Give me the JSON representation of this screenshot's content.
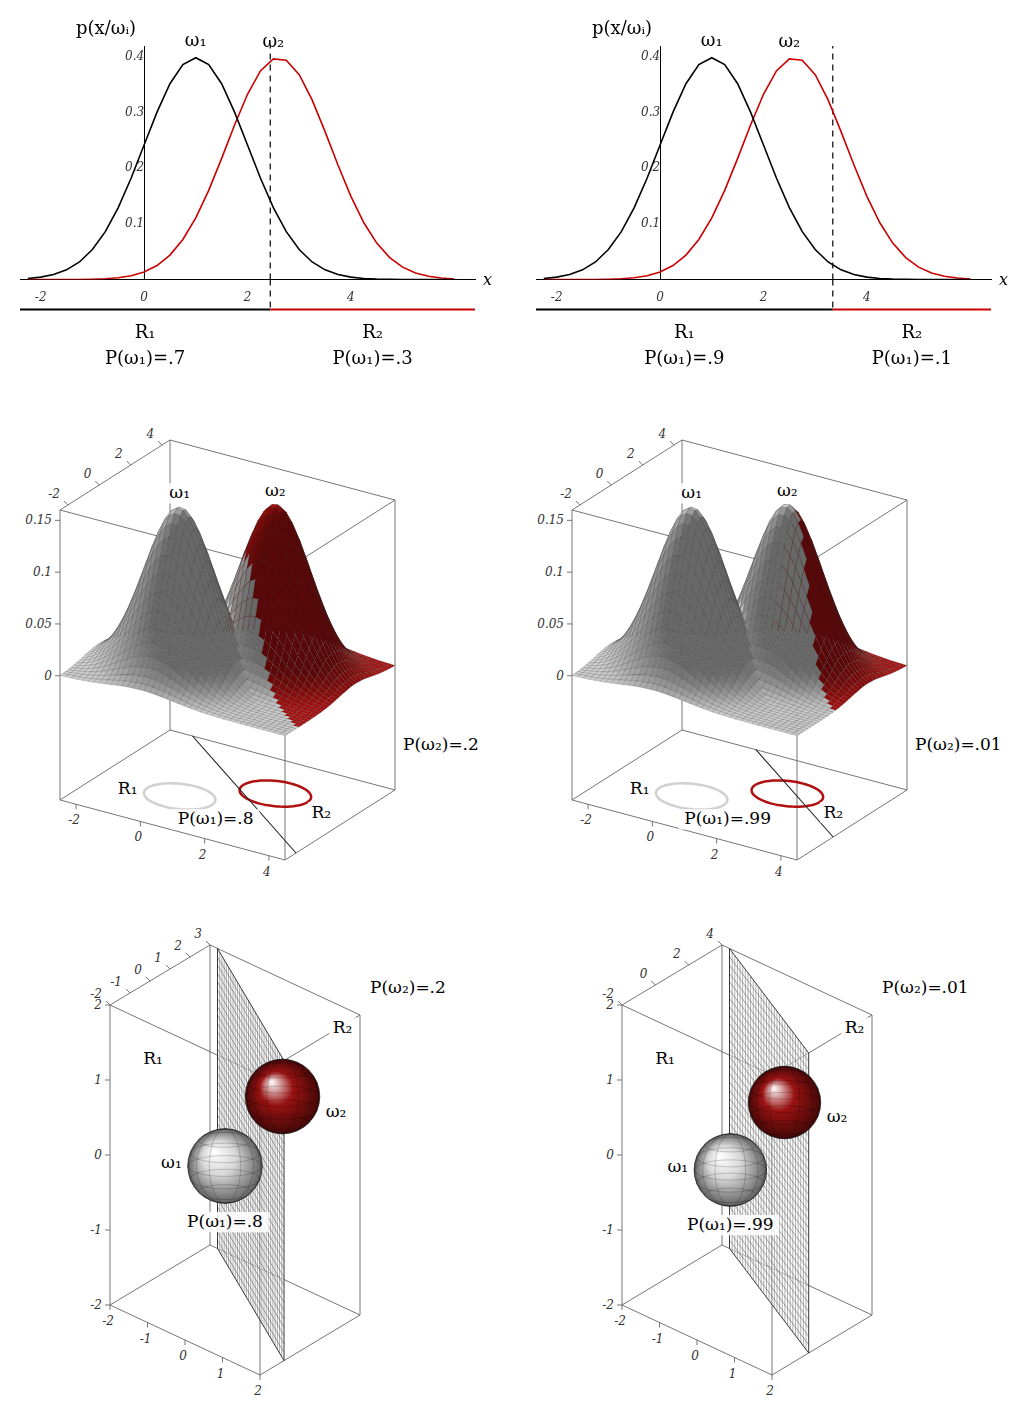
{
  "chart_data": [
    {
      "type": "line",
      "ylabel": "p(x/ωᵢ)",
      "xlabel": "x",
      "x": [
        -2.25,
        -2,
        -1.75,
        -1.5,
        -1.25,
        -1,
        -0.75,
        -0.5,
        -0.25,
        0,
        0.25,
        0.5,
        0.75,
        1,
        1.25,
        1.5,
        1.75,
        2,
        2.25,
        2.5,
        2.75,
        3,
        3.25,
        3.5,
        3.75,
        4,
        4.25,
        4.5,
        4.75,
        5,
        5.25,
        5.5,
        5.75,
        6
      ],
      "series": [
        {
          "name": "ω₁",
          "color": "#000000",
          "values": [
            0.002,
            0.0044,
            0.0091,
            0.0175,
            0.0317,
            0.054,
            0.0863,
            0.1295,
            0.1826,
            0.242,
            0.3011,
            0.3521,
            0.3867,
            0.3989,
            0.3867,
            0.3521,
            0.3011,
            0.242,
            0.1826,
            0.1295,
            0.0863,
            0.054,
            0.0317,
            0.0175,
            0.0091,
            0.0044,
            0.002,
            0.0009,
            0.0004,
            0.0001,
            0,
            0,
            0,
            0
          ]
        },
        {
          "name": "ω₂",
          "color": "#cc0000",
          "values": [
            0,
            0,
            0,
            0.0001,
            0.0002,
            0.0006,
            0.0015,
            0.0033,
            0.0069,
            0.0136,
            0.0252,
            0.044,
            0.0721,
            0.1109,
            0.1604,
            0.2179,
            0.278,
            0.3332,
            0.3752,
            0.3969,
            0.3945,
            0.3683,
            0.323,
            0.2661,
            0.206,
            0.1497,
            0.1022,
            0.0656,
            0.0396,
            0.0224,
            0.0119,
            0.0059,
            0.0028,
            0.0012
          ]
        }
      ],
      "xlim": [
        -2.4,
        6.4
      ],
      "xticks": [
        -2,
        0,
        2,
        4
      ],
      "ylim": [
        0,
        0.42
      ],
      "yticks": [
        0.1,
        0.2,
        0.3,
        0.4
      ],
      "grid": false,
      "boundary": 2.44,
      "regions": [
        {
          "name": "R₁",
          "color": "#000000",
          "prior_label": "P(ω₁)=.7"
        },
        {
          "name": "R₂",
          "color": "#cc0000",
          "prior_label": "P(ω₁)=.3"
        }
      ]
    },
    {
      "type": "line",
      "ylabel": "p(x/ωᵢ)",
      "xlabel": "x",
      "x": [
        -2.25,
        -2,
        -1.75,
        -1.5,
        -1.25,
        -1,
        -0.75,
        -0.5,
        -0.25,
        0,
        0.25,
        0.5,
        0.75,
        1,
        1.25,
        1.5,
        1.75,
        2,
        2.25,
        2.5,
        2.75,
        3,
        3.25,
        3.5,
        3.75,
        4,
        4.25,
        4.5,
        4.75,
        5,
        5.25,
        5.5,
        5.75,
        6
      ],
      "series": [
        {
          "name": "ω₁",
          "color": "#000000",
          "values": [
            0.002,
            0.0044,
            0.0091,
            0.0175,
            0.0317,
            0.054,
            0.0863,
            0.1295,
            0.1826,
            0.242,
            0.3011,
            0.3521,
            0.3867,
            0.3989,
            0.3867,
            0.3521,
            0.3011,
            0.242,
            0.1826,
            0.1295,
            0.0863,
            0.054,
            0.0317,
            0.0175,
            0.0091,
            0.0044,
            0.002,
            0.0009,
            0.0004,
            0.0001,
            0,
            0,
            0,
            0
          ]
        },
        {
          "name": "ω₂",
          "color": "#cc0000",
          "values": [
            0,
            0,
            0,
            0.0001,
            0.0002,
            0.0006,
            0.0015,
            0.0033,
            0.0069,
            0.0136,
            0.0252,
            0.044,
            0.0721,
            0.1109,
            0.1604,
            0.2179,
            0.278,
            0.3332,
            0.3752,
            0.3969,
            0.3945,
            0.3683,
            0.323,
            0.2661,
            0.206,
            0.1497,
            0.1022,
            0.0656,
            0.0396,
            0.0224,
            0.0119,
            0.0059,
            0.0028,
            0.0012
          ]
        }
      ],
      "xlim": [
        -2.4,
        6.4
      ],
      "xticks": [
        -2,
        0,
        2,
        4
      ],
      "ylim": [
        0,
        0.42
      ],
      "yticks": [
        0.1,
        0.2,
        0.3,
        0.4
      ],
      "grid": false,
      "boundary": 3.34,
      "regions": [
        {
          "name": "R₁",
          "color": "#000000",
          "prior_label": "P(ω₁)=.9"
        },
        {
          "name": "R₂",
          "color": "#cc0000",
          "prior_label": "P(ω₁)=.1"
        }
      ]
    },
    {
      "type": "surface",
      "xlim": [
        -2.5,
        4.5
      ],
      "xticks": [
        -2,
        0,
        2,
        4
      ],
      "ylim": [
        -2.5,
        4.5
      ],
      "yticks": [
        -2,
        0,
        2,
        4
      ],
      "zlim": [
        -0.12,
        0.16
      ],
      "zticks": [
        0,
        0.05,
        0.1,
        0.15
      ],
      "series": [
        {
          "name": "ω₁",
          "color": "#d0d0d0",
          "mean": [
            0,
            0
          ],
          "sd": 1
        },
        {
          "name": "ω₂",
          "color": "#b01010",
          "mean": [
            2,
            2
          ],
          "sd": 1
        }
      ],
      "boundary": 2.7,
      "regions": [
        {
          "name": "R₁",
          "prior_label": "P(ω₁)=.8"
        },
        {
          "name": "R₂",
          "prior_label": "P(ω₂)=.2"
        }
      ]
    },
    {
      "type": "surface",
      "xlim": [
        -2.5,
        4.5
      ],
      "xticks": [
        -2,
        0,
        2,
        4
      ],
      "ylim": [
        -2.5,
        4.5
      ],
      "yticks": [
        -2,
        0,
        2,
        4
      ],
      "zlim": [
        -0.12,
        0.16
      ],
      "zticks": [
        0,
        0.05,
        0.1,
        0.15
      ],
      "series": [
        {
          "name": "ω₁",
          "color": "#d0d0d0",
          "mean": [
            0,
            0
          ],
          "sd": 1
        },
        {
          "name": "ω₂",
          "color": "#b01010",
          "mean": [
            2,
            2
          ],
          "sd": 1
        }
      ],
      "boundary": 4.3,
      "regions": [
        {
          "name": "R₁",
          "prior_label": "P(ω₁)=.99"
        },
        {
          "name": "R₂",
          "prior_label": "P(ω₂)=.01"
        }
      ]
    },
    {
      "type": "spheres",
      "xlim": [
        -2,
        2
      ],
      "xticks": [
        -2,
        -1,
        0,
        1,
        2
      ],
      "ylim": [
        -2,
        3
      ],
      "yticks": [
        -2,
        -1,
        0,
        1,
        2,
        3
      ],
      "zlim": [
        -2,
        2
      ],
      "zticks": [
        -2,
        -1,
        0,
        1,
        2
      ],
      "series": [
        {
          "name": "ω₁",
          "color": "#d8d8d8",
          "mean": [
            0,
            0,
            0
          ],
          "radius": 0.8
        },
        {
          "name": "ω₂",
          "color": "#9a1212",
          "mean": [
            1,
            1,
            1
          ],
          "radius": 0.8
        }
      ],
      "boundary": 1.2,
      "regions": [
        {
          "name": "R₁",
          "prior_label": "P(ω₁)=.8"
        },
        {
          "name": "R₂",
          "prior_label": "P(ω₂)=.2"
        }
      ]
    },
    {
      "type": "spheres",
      "xlim": [
        -2,
        2
      ],
      "xticks": [
        -2,
        -1,
        0,
        1,
        2
      ],
      "ylim": [
        -2,
        4
      ],
      "yticks": [
        -2,
        0,
        2,
        4
      ],
      "zlim": [
        -2,
        2
      ],
      "zticks": [
        -2,
        -1,
        0,
        1,
        2
      ],
      "series": [
        {
          "name": "ω₁",
          "color": "#d8d8d8",
          "mean": [
            0,
            0,
            0
          ],
          "radius": 0.8
        },
        {
          "name": "ω₂",
          "color": "#9a1212",
          "mean": [
            1,
            1,
            1
          ],
          "radius": 0.8
        }
      ],
      "boundary": 2.2,
      "regions": [
        {
          "name": "R₁",
          "prior_label": "P(ω₁)=.99"
        },
        {
          "name": "R₂",
          "prior_label": "P(ω₂)=.01"
        }
      ]
    }
  ]
}
